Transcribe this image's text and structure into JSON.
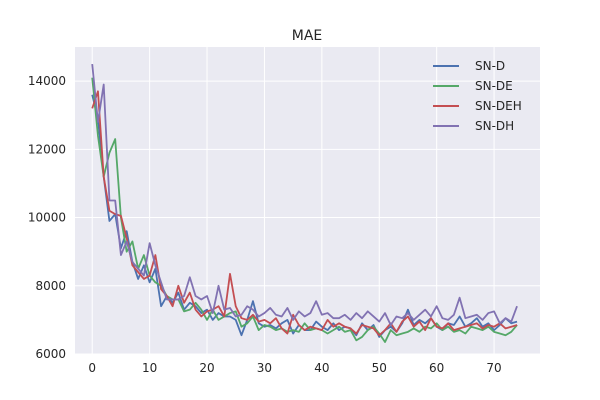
{
  "chart_data": {
    "type": "line",
    "title": "MAE",
    "xlabel": "",
    "ylabel": "",
    "xlim": [
      -3,
      78
    ],
    "ylim": [
      6000,
      15000
    ],
    "xticks": [
      0,
      10,
      20,
      30,
      40,
      50,
      60,
      70
    ],
    "yticks": [
      6000,
      8000,
      10000,
      12000,
      14000
    ],
    "grid": true,
    "legend_position": "top-right",
    "x": [
      0,
      1,
      2,
      3,
      4,
      5,
      6,
      7,
      8,
      9,
      10,
      11,
      12,
      13,
      14,
      15,
      16,
      17,
      18,
      19,
      20,
      21,
      22,
      23,
      24,
      25,
      26,
      27,
      28,
      29,
      30,
      31,
      32,
      33,
      34,
      35,
      36,
      37,
      38,
      39,
      40,
      41,
      42,
      43,
      44,
      45,
      46,
      47,
      48,
      49,
      50,
      51,
      52,
      53,
      54,
      55,
      56,
      57,
      58,
      59,
      60,
      61,
      62,
      63,
      64,
      65,
      66,
      67,
      68,
      69,
      70,
      71,
      72,
      73,
      74
    ],
    "series": [
      {
        "name": "SN-D",
        "color": "#4c72b0",
        "values": [
          13600,
          12900,
          11200,
          9900,
          10100,
          9100,
          9600,
          8700,
          8200,
          8600,
          8100,
          8500,
          7400,
          7700,
          7500,
          7800,
          7300,
          7500,
          7400,
          7200,
          7300,
          7000,
          7200,
          7100,
          7100,
          7000,
          6550,
          7000,
          7550,
          6900,
          6800,
          6850,
          6750,
          6900,
          7000,
          6600,
          6850,
          6700,
          6700,
          6950,
          6800,
          6700,
          6900,
          6700,
          6800,
          6750,
          6550,
          6900,
          6700,
          6850,
          6500,
          6700,
          6800,
          6650,
          6900,
          7300,
          6850,
          7000,
          6900,
          7050,
          6800,
          6700,
          6900,
          6850,
          7100,
          6800,
          6900,
          7050,
          6800,
          6900,
          6700,
          6850,
          7050,
          6900,
          6950
        ]
      },
      {
        "name": "SN-DE",
        "color": "#55a868",
        "values": [
          14100,
          12400,
          11200,
          11900,
          12300,
          10000,
          9000,
          9300,
          8500,
          8900,
          8300,
          8100,
          8000,
          7700,
          7600,
          7600,
          7250,
          7300,
          7500,
          7300,
          7000,
          7300,
          7000,
          7100,
          7200,
          7250,
          6800,
          6900,
          7100,
          6700,
          6850,
          6800,
          6700,
          6750,
          6650,
          6700,
          6650,
          6900,
          6700,
          6750,
          6700,
          6600,
          6700,
          6800,
          6650,
          6700,
          6400,
          6500,
          6700,
          6800,
          6600,
          6350,
          6700,
          6550,
          6600,
          6650,
          6750,
          6650,
          6800,
          6750,
          6900,
          6700,
          6800,
          6650,
          6700,
          6600,
          6800,
          6750,
          6700,
          6800,
          6650,
          6600,
          6550,
          6650,
          6850
        ]
      },
      {
        "name": "SN-DEH",
        "color": "#c44e52",
        "values": [
          13200,
          13700,
          11200,
          10200,
          10100,
          10050,
          9400,
          8600,
          8400,
          8200,
          8300,
          8900,
          7900,
          7700,
          7400,
          8000,
          7500,
          7800,
          7300,
          7100,
          7250,
          7300,
          7400,
          7100,
          8350,
          7400,
          7050,
          7000,
          7150,
          6950,
          7000,
          6900,
          7050,
          6750,
          6600,
          7150,
          6850,
          6700,
          6800,
          6750,
          6700,
          7000,
          6800,
          6900,
          6800,
          6750,
          6600,
          6850,
          6800,
          6750,
          6550,
          6700,
          6900,
          6650,
          6950,
          7100,
          6800,
          6950,
          6700,
          7050,
          6800,
          6750,
          6900,
          6700,
          6750,
          6800,
          6850,
          6900,
          6750,
          6850,
          6800,
          6900,
          6750,
          6800,
          6850
        ]
      },
      {
        "name": "SN-DH",
        "color": "#8172b2",
        "values": [
          14500,
          12800,
          13900,
          10500,
          10500,
          8900,
          9300,
          8700,
          8500,
          8300,
          9250,
          8600,
          8100,
          7600,
          7600,
          7600,
          7700,
          8250,
          7700,
          7600,
          7700,
          7200,
          8000,
          7300,
          7350,
          7100,
          7150,
          7400,
          7300,
          7100,
          7200,
          7350,
          7150,
          7100,
          7350,
          7000,
          7250,
          7100,
          7200,
          7550,
          7150,
          7200,
          7050,
          7050,
          7150,
          7000,
          7200,
          7050,
          7250,
          7100,
          6950,
          7200,
          6850,
          7100,
          7050,
          7200,
          7000,
          7150,
          7300,
          7100,
          7400,
          7050,
          7000,
          7150,
          7650,
          7050,
          7100,
          7150,
          7000,
          7200,
          7250,
          6900,
          7050,
          6950,
          7400
        ]
      }
    ]
  }
}
